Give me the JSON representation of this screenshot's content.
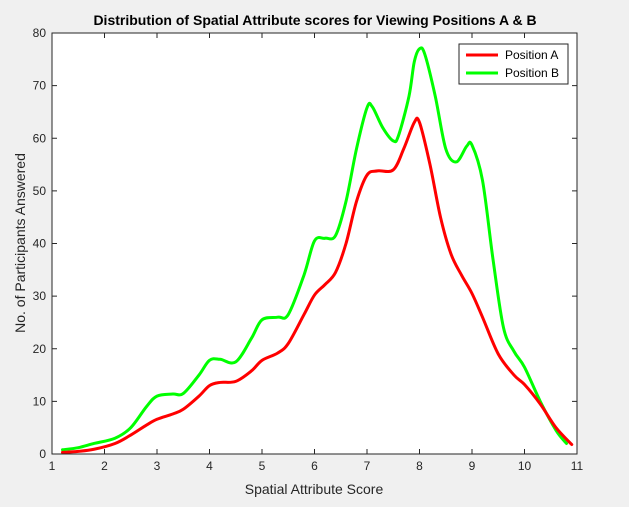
{
  "chart_data": {
    "type": "line",
    "title": "Distribution of Spatial Attribute scores for Viewing Positions A & B",
    "xlabel": "Spatial Attribute Score",
    "ylabel": "No. of Participants Answered",
    "xlim": [
      1,
      11
    ],
    "ylim": [
      0,
      80
    ],
    "xticks": [
      1,
      2,
      3,
      4,
      5,
      6,
      7,
      8,
      9,
      10,
      11
    ],
    "yticks": [
      0,
      10,
      20,
      30,
      40,
      50,
      60,
      70,
      80
    ],
    "grid": false,
    "legend_position": "top-right",
    "series": [
      {
        "name": "Position A",
        "color": "#ff0000",
        "points": [
          [
            1.2,
            0.3
          ],
          [
            1.5,
            0.5
          ],
          [
            1.8,
            0.9
          ],
          [
            2.2,
            2.0
          ],
          [
            2.5,
            3.6
          ],
          [
            2.8,
            5.5
          ],
          [
            3.0,
            6.6
          ],
          [
            3.3,
            7.6
          ],
          [
            3.5,
            8.5
          ],
          [
            3.8,
            11.0
          ],
          [
            4.0,
            13.0
          ],
          [
            4.2,
            13.6
          ],
          [
            4.5,
            13.8
          ],
          [
            4.8,
            15.8
          ],
          [
            5.0,
            17.8
          ],
          [
            5.3,
            19.2
          ],
          [
            5.5,
            21.0
          ],
          [
            5.8,
            26.5
          ],
          [
            6.0,
            30.2
          ],
          [
            6.2,
            32.2
          ],
          [
            6.4,
            34.5
          ],
          [
            6.6,
            40.0
          ],
          [
            6.8,
            48.0
          ],
          [
            7.0,
            53.0
          ],
          [
            7.2,
            53.8
          ],
          [
            7.5,
            54.0
          ],
          [
            7.7,
            58.0
          ],
          [
            7.9,
            63.0
          ],
          [
            8.0,
            63.0
          ],
          [
            8.2,
            55.0
          ],
          [
            8.4,
            45.0
          ],
          [
            8.6,
            38.0
          ],
          [
            8.8,
            34.0
          ],
          [
            9.0,
            30.5
          ],
          [
            9.2,
            26.0
          ],
          [
            9.5,
            19.0
          ],
          [
            9.8,
            15.0
          ],
          [
            10.0,
            13.2
          ],
          [
            10.3,
            9.5
          ],
          [
            10.6,
            5.0
          ],
          [
            10.9,
            1.8
          ]
        ]
      },
      {
        "name": "Position B",
        "color": "#00ff00",
        "points": [
          [
            1.2,
            0.8
          ],
          [
            1.5,
            1.2
          ],
          [
            1.8,
            2.0
          ],
          [
            2.2,
            3.0
          ],
          [
            2.5,
            5.0
          ],
          [
            2.8,
            9.0
          ],
          [
            3.0,
            11.0
          ],
          [
            3.3,
            11.4
          ],
          [
            3.5,
            11.5
          ],
          [
            3.8,
            15.0
          ],
          [
            4.0,
            17.8
          ],
          [
            4.2,
            18.0
          ],
          [
            4.5,
            17.5
          ],
          [
            4.8,
            22.0
          ],
          [
            5.0,
            25.5
          ],
          [
            5.3,
            26.0
          ],
          [
            5.5,
            26.5
          ],
          [
            5.8,
            34.0
          ],
          [
            6.0,
            40.5
          ],
          [
            6.2,
            41.0
          ],
          [
            6.4,
            41.5
          ],
          [
            6.6,
            48.0
          ],
          [
            6.8,
            58.0
          ],
          [
            7.0,
            65.8
          ],
          [
            7.1,
            66.0
          ],
          [
            7.3,
            62.0
          ],
          [
            7.5,
            59.5
          ],
          [
            7.6,
            60.5
          ],
          [
            7.8,
            68.0
          ],
          [
            7.9,
            74.5
          ],
          [
            8.0,
            77.0
          ],
          [
            8.1,
            76.0
          ],
          [
            8.3,
            68.0
          ],
          [
            8.5,
            58.0
          ],
          [
            8.7,
            55.5
          ],
          [
            8.9,
            58.5
          ],
          [
            9.0,
            58.7
          ],
          [
            9.2,
            52.0
          ],
          [
            9.4,
            37.0
          ],
          [
            9.6,
            24.0
          ],
          [
            9.8,
            19.5
          ],
          [
            10.0,
            16.5
          ],
          [
            10.3,
            10.0
          ],
          [
            10.6,
            4.5
          ],
          [
            10.8,
            2.0
          ]
        ]
      }
    ]
  }
}
